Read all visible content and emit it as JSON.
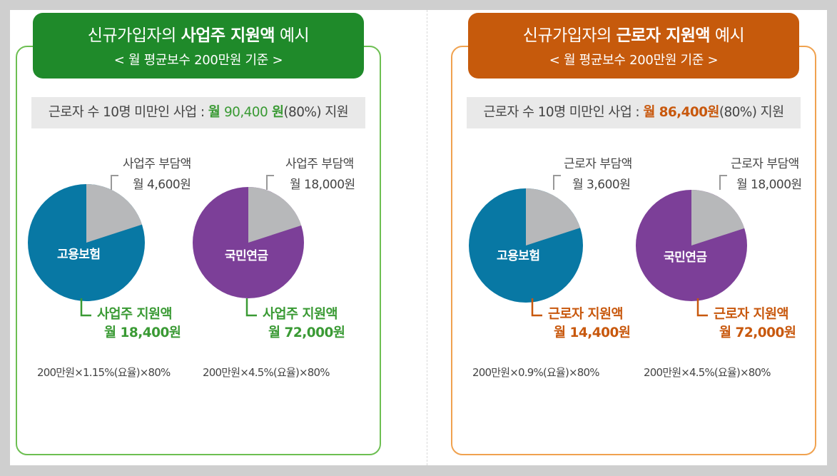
{
  "colors": {
    "employer_green": "#1f8a2a",
    "worker_orange": "#c65a0c",
    "insurance_blue": "#0878a4",
    "pension_purple": "#7c3f98",
    "burden_gray": "#b7b8ba"
  },
  "employer": {
    "title_prefix": "신규가입자의 ",
    "title_bold": "사업주 지원액",
    "title_suffix": " 예시",
    "subtitle": "< 월 평균보수 200만원 기준 >",
    "info_prefix": "근로자 수 10명 미만인 사업 : ",
    "info_bold1": "월 ",
    "info_amount": "90,400",
    "info_bold2": " 원",
    "info_suffix": "(80%) 지원",
    "charts": [
      {
        "center_label": "고용보험",
        "burden_label": "사업주 부담액",
        "burden_amount": "월 4,600원",
        "support_label": "사업주 지원액",
        "support_amount": "월 18,400원",
        "formula": "200만원×1.15%(요율)×80%",
        "burden_fraction": 0.2
      },
      {
        "center_label": "국민연금",
        "burden_label": "사업주 부담액",
        "burden_amount": "월 18,000원",
        "support_label": "사업주 지원액",
        "support_amount": "월 72,000원",
        "formula": "200만원×4.5%(요율)×80%",
        "burden_fraction": 0.2
      }
    ]
  },
  "worker": {
    "title_prefix": "신규가입자의 ",
    "title_bold": "근로자 지원액",
    "title_suffix": " 예시",
    "subtitle": "< 월 평균보수 200만원 기준 >",
    "info_prefix": "근로자 수 10명 미만인 사업 : ",
    "info_amount": "월 86,400원",
    "info_suffix": "(80%) 지원",
    "charts": [
      {
        "center_label": "고용보험",
        "burden_label": "근로자 부담액",
        "burden_amount": "월 3,600원",
        "support_label": "근로자 지원액",
        "support_amount": "월 14,400원",
        "formula": "200만원×0.9%(요율)×80%",
        "burden_fraction": 0.2
      },
      {
        "center_label": "국민연금",
        "burden_label": "근로자 부담액",
        "burden_amount": "월 18,000원",
        "support_label": "근로자 지원액",
        "support_amount": "월 72,000원",
        "formula": "200만원×4.5%(요율)×80%",
        "burden_fraction": 0.2
      }
    ]
  }
}
